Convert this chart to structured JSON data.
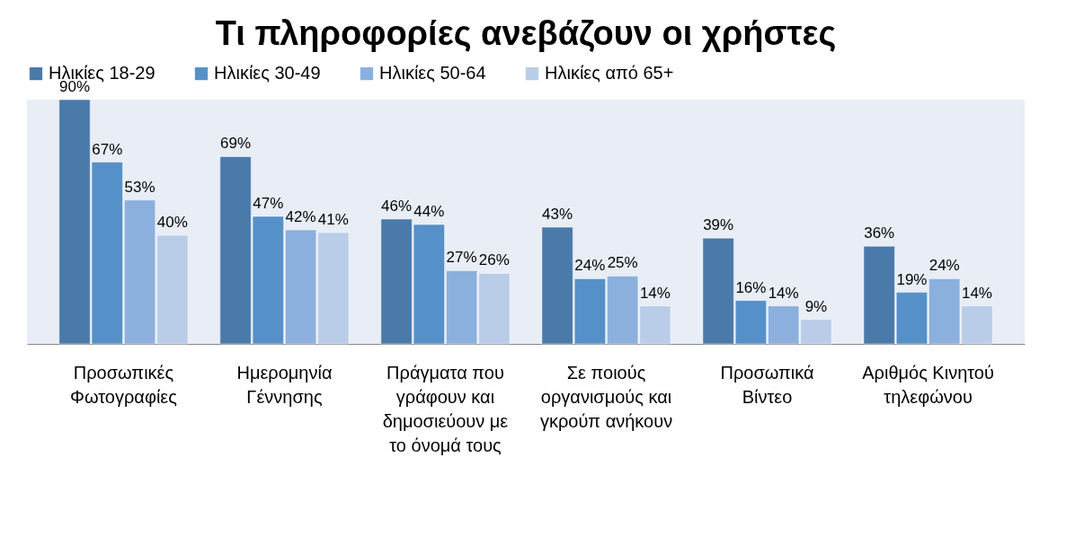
{
  "chart_data": {
    "type": "bar",
    "title": "Τι πληροφορίες ανεβάζουν οι χρήστες",
    "categories": [
      "Προσωπικές Φωτογραφίες",
      "Ημερομηνία Γέννησης",
      "Πράγματα που γράφουν και δημοσιεύουν με το όνομά τους",
      "Σε ποιούς οργανισμούς και γκρούπ ανήκουν",
      "Προσωπικά Βίντεο",
      "Αριθμός Κινητού τηλεφώνου"
    ],
    "series": [
      {
        "name": "Ηλικίες 18-29",
        "color": "#4a7aaa",
        "values": [
          90,
          69,
          46,
          43,
          39,
          36
        ],
        "value_labels": [
          "90%",
          "69%",
          "46%",
          "43%",
          "39%",
          "36%"
        ]
      },
      {
        "name": "Ηλικίες 30-49",
        "color": "#5591c8",
        "values": [
          67,
          47,
          44,
          24,
          16,
          19
        ],
        "value_labels": [
          "67%",
          "47%",
          "44%",
          "24%",
          "16%",
          "19%"
        ]
      },
      {
        "name": "Ηλικίες 50-64",
        "color": "#8cb0de",
        "values": [
          53,
          42,
          27,
          25,
          14,
          24
        ],
        "value_labels": [
          "53%",
          "42%",
          "27%",
          "25%",
          "14%",
          "24%"
        ]
      },
      {
        "name": "Ηλικίες από 65+",
        "color": "#b9cde8",
        "values": [
          40,
          41,
          26,
          14,
          9,
          14
        ],
        "value_labels": [
          "40%",
          "41%",
          "26%",
          "14%",
          "9%",
          "14%"
        ]
      }
    ],
    "legend": "top",
    "grid": false,
    "tick_labels": "x"
  }
}
